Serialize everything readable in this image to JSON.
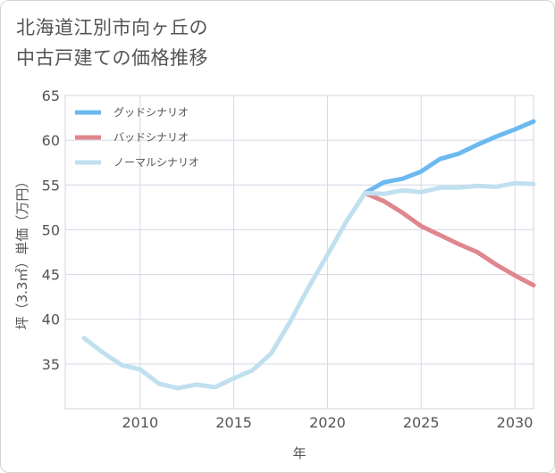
{
  "title_lines": [
    "北海道江別市向ヶ丘の",
    "中古戸建ての価格推移"
  ],
  "chart_data": {
    "type": "line",
    "xlabel": "年",
    "ylabel": "坪（3.3㎡）単価（万円）",
    "xlim": [
      2006,
      2031
    ],
    "ylim": [
      30,
      65
    ],
    "xticks": [
      2010,
      2015,
      2020,
      2025,
      2030
    ],
    "yticks": [
      35,
      40,
      45,
      50,
      55,
      60,
      65
    ],
    "grid": true,
    "legend_position": "top-left",
    "series": [
      {
        "name": "グッドシナリオ",
        "color": "#6cb9f0",
        "x": [
          2022,
          2023,
          2024,
          2025,
          2026,
          2027,
          2028,
          2029,
          2030,
          2031
        ],
        "y": [
          54.1,
          55.3,
          55.7,
          56.5,
          57.9,
          58.5,
          59.5,
          60.4,
          61.2,
          62.1
        ]
      },
      {
        "name": "バッドシナリオ",
        "color": "#e0868e",
        "x": [
          2022,
          2023,
          2024,
          2025,
          2026,
          2027,
          2028,
          2029,
          2030,
          2031
        ],
        "y": [
          54.1,
          53.2,
          51.9,
          50.4,
          49.4,
          48.4,
          47.5,
          46.1,
          44.9,
          43.8
        ]
      },
      {
        "name": "ノーマルシナリオ",
        "color": "#c0e0ef",
        "x": [
          2007,
          2008,
          2009,
          2010,
          2011,
          2012,
          2013,
          2014,
          2015,
          2016,
          2017,
          2018,
          2019,
          2020,
          2021,
          2022,
          2023,
          2024,
          2025,
          2026,
          2027,
          2028,
          2029,
          2030,
          2031
        ],
        "y": [
          37.9,
          36.3,
          34.9,
          34.4,
          32.8,
          32.3,
          32.7,
          32.4,
          33.4,
          34.3,
          36.2,
          39.7,
          43.6,
          47.2,
          50.9,
          54.1,
          54.0,
          54.4,
          54.2,
          54.7,
          54.7,
          54.9,
          54.8,
          55.2,
          55.1
        ]
      }
    ]
  }
}
